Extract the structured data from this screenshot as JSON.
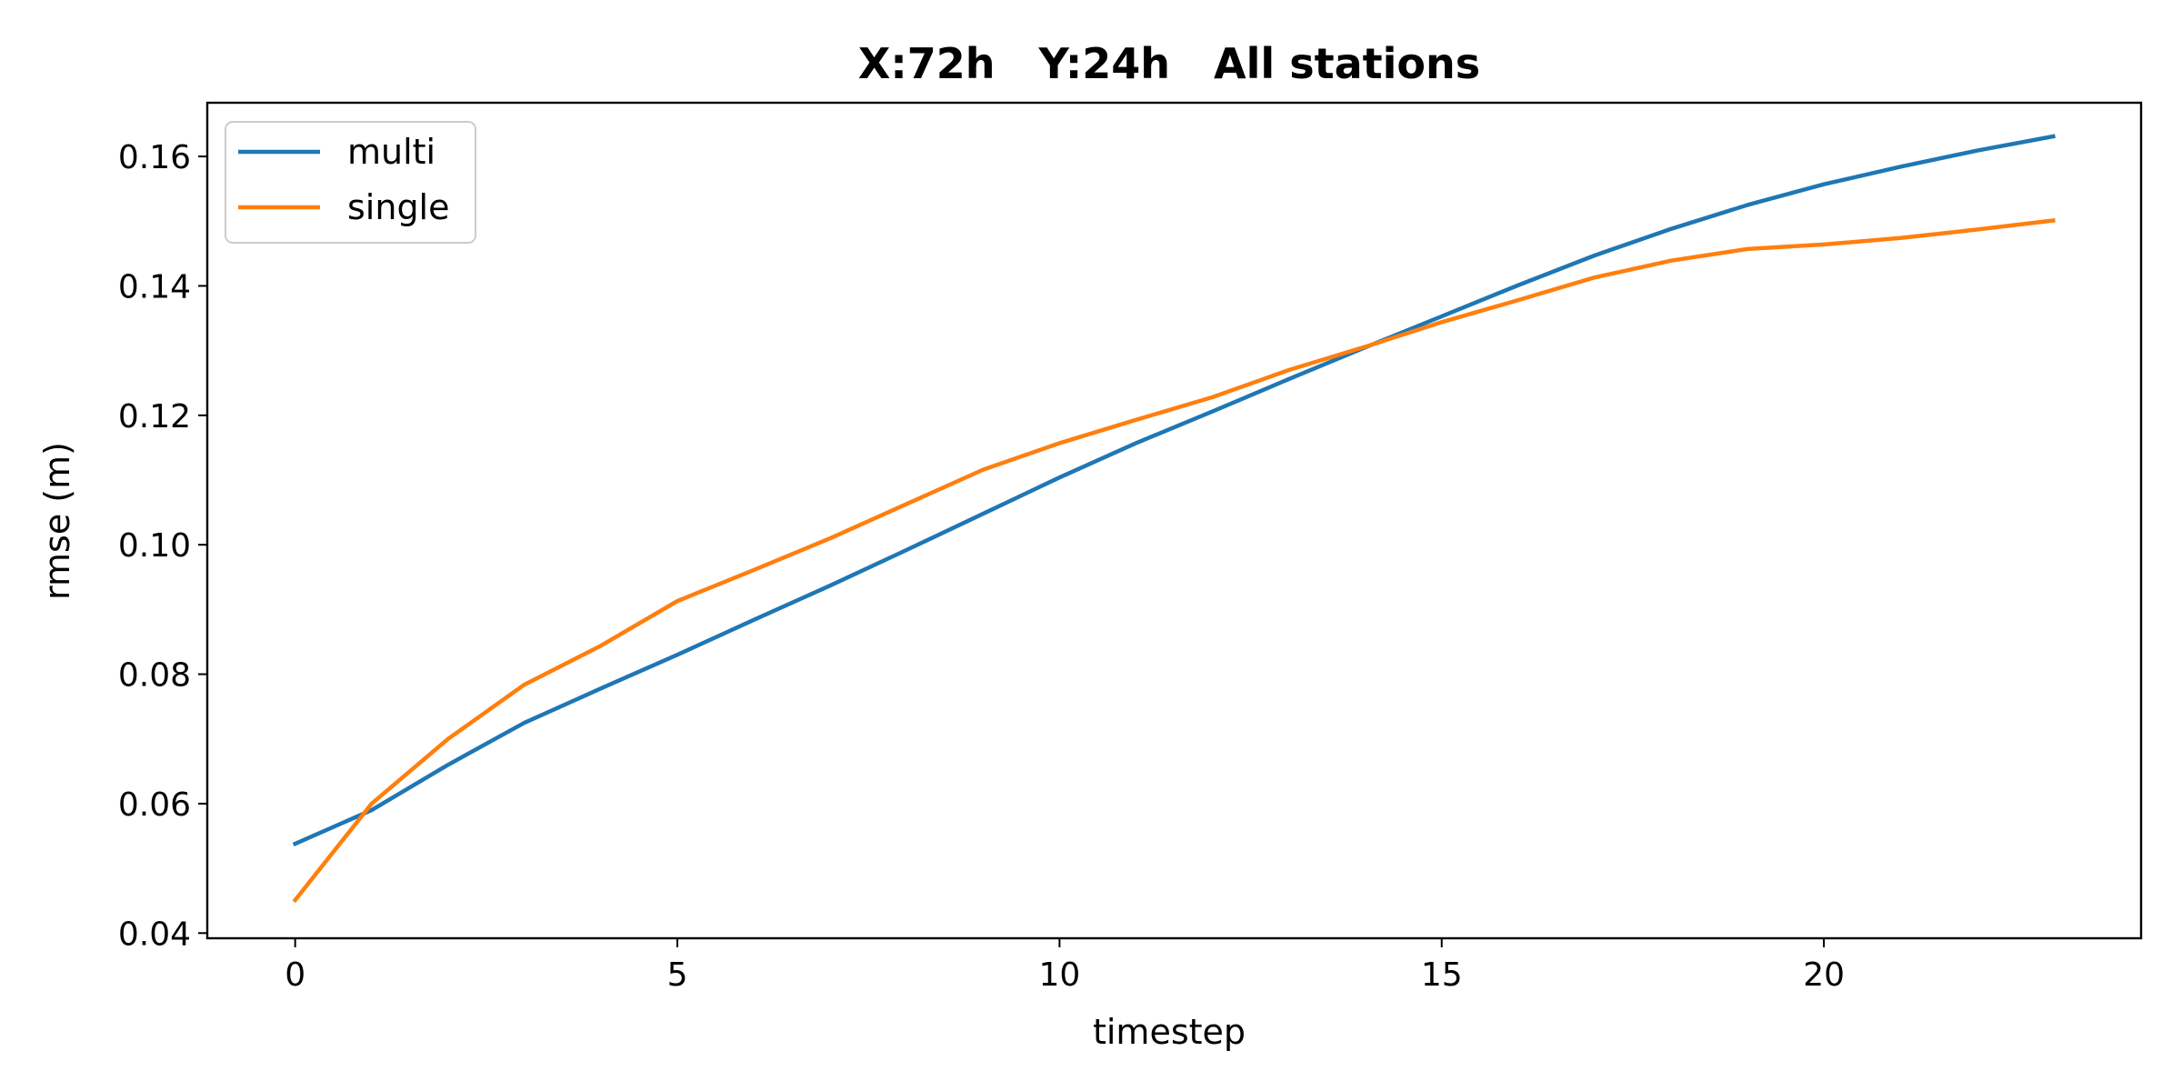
{
  "chart_data": {
    "type": "line",
    "title": "X:72h   Y:24h   All stations",
    "xlabel": "timestep",
    "ylabel": "rmse (m)",
    "xlim": [
      -1.15,
      24.15
    ],
    "ylim": [
      0.0392,
      0.1683
    ],
    "xticks": [
      0,
      5,
      10,
      15,
      20
    ],
    "yticks": [
      0.04,
      0.06,
      0.08,
      0.1,
      0.12,
      0.14,
      0.16
    ],
    "xtick_labels": [
      "0",
      "5",
      "10",
      "15",
      "20"
    ],
    "ytick_labels": [
      "0.04",
      "0.06",
      "0.08",
      "0.10",
      "0.12",
      "0.14",
      "0.16"
    ],
    "grid": false,
    "legend_position": "top-left",
    "x": [
      0,
      1,
      2,
      3,
      4,
      5,
      6,
      7,
      8,
      9,
      10,
      11,
      12,
      13,
      14,
      15,
      16,
      17,
      18,
      19,
      20,
      21,
      22,
      23
    ],
    "series": [
      {
        "name": "multi",
        "color": "#1f77b4",
        "values": [
          0.0538,
          0.059,
          0.066,
          0.0725,
          0.0778,
          0.083,
          0.0884,
          0.0937,
          0.0992,
          0.1048,
          0.1104,
          0.1157,
          0.1206,
          0.1256,
          0.1305,
          0.1353,
          0.1401,
          0.1447,
          0.1488,
          0.1525,
          0.1557,
          0.1584,
          0.1609,
          0.1631
        ]
      },
      {
        "name": "single",
        "color": "#ff7f0e",
        "values": [
          0.0451,
          0.06,
          0.07,
          0.0784,
          0.0844,
          0.0913,
          0.0961,
          0.101,
          0.1063,
          0.1116,
          0.1157,
          0.1193,
          0.1228,
          0.127,
          0.1306,
          0.1344,
          0.1378,
          0.1413,
          0.1439,
          0.1457,
          0.1464,
          0.1474,
          0.1487,
          0.1501
        ]
      }
    ]
  }
}
